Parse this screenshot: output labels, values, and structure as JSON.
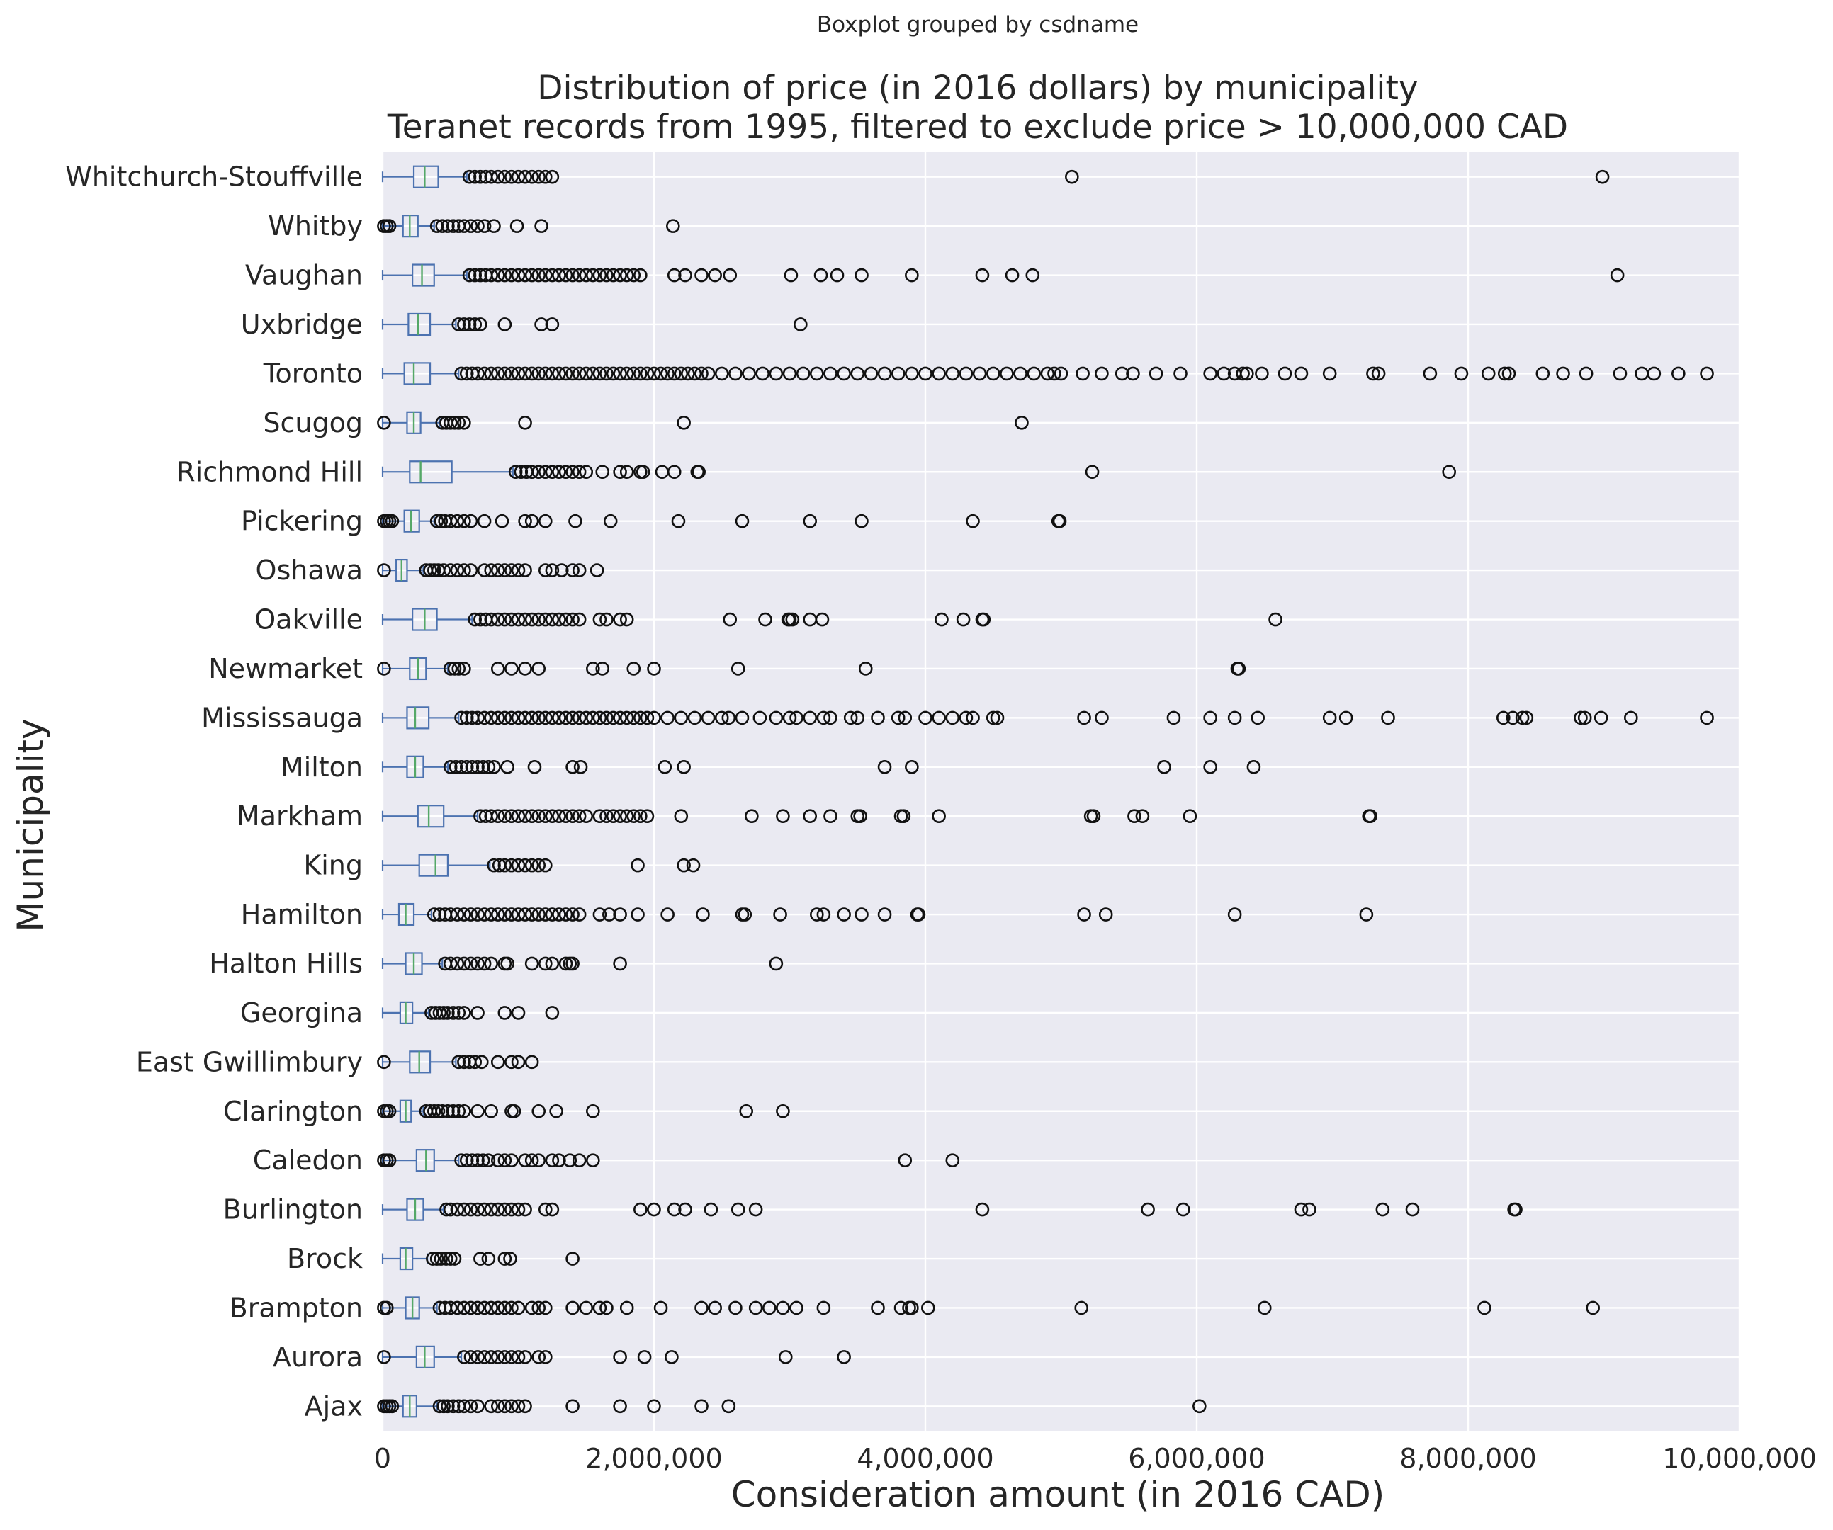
{
  "chart_data": {
    "type": "boxplot",
    "orientation": "horizontal",
    "suptitle": "Boxplot grouped by csdname",
    "title": [
      "Distribution of price (in 2016 dollars) by municipality",
      "Teranet records from 1995, filtered to exclude price > 10,000,000 CAD"
    ],
    "xlabel": "Consideration amount (in 2016 CAD)",
    "ylabel": "Municipality",
    "xlim": [
      0,
      10000000
    ],
    "xticks": [
      0,
      2000000,
      4000000,
      6000000,
      8000000,
      10000000
    ],
    "xtick_labels": [
      "0",
      "2,000,000",
      "4,000,000",
      "6,000,000",
      "8,000,000",
      "10,000,000"
    ],
    "grid": true,
    "colors": {
      "background": "#eaeaf2",
      "box": "#4c72b0",
      "median": "#55a868",
      "flier": "#111111",
      "grid": "#ffffff"
    },
    "groups": [
      {
        "name": "Ajax",
        "whislo": 0,
        "q1": 150000,
        "med": 200000,
        "q3": 250000,
        "whishi": 400000,
        "fliers": [
          10000,
          30000,
          50000,
          70000,
          420000,
          450000,
          480000,
          520000,
          560000,
          600000,
          650000,
          700000,
          800000,
          850000,
          900000,
          950000,
          1000000,
          1050000,
          1400000,
          1750000,
          2000000,
          2350000,
          2550000,
          6020000
        ]
      },
      {
        "name": "Aurora",
        "whislo": 0,
        "q1": 250000,
        "med": 310000,
        "q3": 380000,
        "whishi": 580000,
        "fliers": [
          10000,
          600000,
          650000,
          700000,
          750000,
          800000,
          850000,
          900000,
          950000,
          1000000,
          1050000,
          1150000,
          1200000,
          1750000,
          1930000,
          2130000,
          2970000,
          3400000
        ]
      },
      {
        "name": "Brampton",
        "whislo": 0,
        "q1": 170000,
        "med": 220000,
        "q3": 270000,
        "whishi": 400000,
        "fliers": [
          10000,
          30000,
          420000,
          460000,
          500000,
          550000,
          600000,
          650000,
          700000,
          750000,
          800000,
          850000,
          900000,
          950000,
          1000000,
          1100000,
          1150000,
          1200000,
          1400000,
          1500000,
          1600000,
          1650000,
          1800000,
          2050000,
          2350000,
          2450000,
          2600000,
          2750000,
          2850000,
          2950000,
          3050000,
          3250000,
          3650000,
          3820000,
          3880000,
          3900000,
          4020000,
          5150000,
          6500000,
          8120000,
          8920000
        ]
      },
      {
        "name": "Brock",
        "whislo": 0,
        "q1": 130000,
        "med": 170000,
        "q3": 220000,
        "whishi": 330000,
        "fliers": [
          370000,
          400000,
          430000,
          470000,
          500000,
          530000,
          720000,
          780000,
          900000,
          940000,
          1400000
        ]
      },
      {
        "name": "Burlington",
        "whislo": 0,
        "q1": 180000,
        "med": 240000,
        "q3": 300000,
        "whishi": 450000,
        "fliers": [
          470000,
          500000,
          550000,
          600000,
          650000,
          700000,
          750000,
          800000,
          850000,
          900000,
          950000,
          1000000,
          1050000,
          1200000,
          1250000,
          1900000,
          2000000,
          2150000,
          2230000,
          2420000,
          2620000,
          2750000,
          4420000,
          5640000,
          5900000,
          6770000,
          6830000,
          7370000,
          7590000,
          8340000,
          8350000
        ]
      },
      {
        "name": "Caledon",
        "whislo": 0,
        "q1": 250000,
        "med": 320000,
        "q3": 380000,
        "whishi": 560000,
        "fliers": [
          10000,
          30000,
          50000,
          580000,
          620000,
          660000,
          700000,
          740000,
          780000,
          850000,
          900000,
          950000,
          1050000,
          1100000,
          1150000,
          1250000,
          1300000,
          1380000,
          1450000,
          1550000,
          3850000,
          4200000
        ]
      },
      {
        "name": "Clarington",
        "whislo": 0,
        "q1": 130000,
        "med": 170000,
        "q3": 210000,
        "whishi": 300000,
        "fliers": [
          10000,
          30000,
          50000,
          320000,
          350000,
          380000,
          410000,
          440000,
          480000,
          520000,
          560000,
          600000,
          700000,
          800000,
          950000,
          970000,
          1150000,
          1280000,
          1550000,
          2680000,
          2950000
        ]
      },
      {
        "name": "East Gwillimbury",
        "whislo": 0,
        "q1": 200000,
        "med": 270000,
        "q3": 350000,
        "whishi": 540000,
        "fliers": [
          10000,
          560000,
          600000,
          640000,
          680000,
          730000,
          850000,
          950000,
          1000000,
          1100000
        ]
      },
      {
        "name": "Georgina",
        "whislo": 0,
        "q1": 130000,
        "med": 170000,
        "q3": 220000,
        "whishi": 340000,
        "fliers": [
          360000,
          390000,
          420000,
          450000,
          480000,
          520000,
          560000,
          600000,
          700000,
          900000,
          1000000,
          1250000
        ]
      },
      {
        "name": "Halton Hills",
        "whislo": 0,
        "q1": 170000,
        "med": 230000,
        "q3": 290000,
        "whishi": 440000,
        "fliers": [
          460000,
          500000,
          550000,
          600000,
          650000,
          700000,
          750000,
          800000,
          900000,
          920000,
          1100000,
          1200000,
          1250000,
          1350000,
          1380000,
          1400000,
          1750000,
          2900000
        ]
      },
      {
        "name": "Hamilton",
        "whislo": 0,
        "q1": 120000,
        "med": 170000,
        "q3": 230000,
        "whishi": 360000,
        "fliers": [
          380000,
          420000,
          460000,
          500000,
          550000,
          600000,
          650000,
          700000,
          750000,
          800000,
          850000,
          900000,
          950000,
          1000000,
          1050000,
          1100000,
          1150000,
          1200000,
          1250000,
          1300000,
          1350000,
          1400000,
          1450000,
          1600000,
          1670000,
          1750000,
          1880000,
          2100000,
          2360000,
          2650000,
          2670000,
          2930000,
          3200000,
          3250000,
          3400000,
          3530000,
          3700000,
          3940000,
          3950000,
          5170000,
          5330000,
          6280000,
          7250000
        ]
      },
      {
        "name": "King",
        "whislo": 0,
        "q1": 270000,
        "med": 390000,
        "q3": 480000,
        "whishi": 790000,
        "fliers": [
          820000,
          860000,
          900000,
          950000,
          1000000,
          1050000,
          1100000,
          1150000,
          1200000,
          1880000,
          2220000,
          2290000
        ]
      },
      {
        "name": "Markham",
        "whislo": 0,
        "q1": 260000,
        "med": 340000,
        "q3": 450000,
        "whishi": 700000,
        "fliers": [
          720000,
          760000,
          800000,
          850000,
          900000,
          950000,
          1000000,
          1050000,
          1100000,
          1150000,
          1200000,
          1250000,
          1300000,
          1350000,
          1400000,
          1450000,
          1500000,
          1600000,
          1650000,
          1700000,
          1750000,
          1800000,
          1850000,
          1900000,
          1950000,
          2200000,
          2720000,
          2950000,
          3150000,
          3300000,
          3500000,
          3520000,
          3820000,
          3840000,
          4100000,
          5220000,
          5240000,
          5540000,
          5600000,
          5950000,
          7270000,
          7280000
        ]
      },
      {
        "name": "Milton",
        "whislo": 0,
        "q1": 180000,
        "med": 240000,
        "q3": 300000,
        "whishi": 480000,
        "fliers": [
          500000,
          540000,
          580000,
          620000,
          660000,
          700000,
          740000,
          780000,
          820000,
          920000,
          1120000,
          1400000,
          1460000,
          2080000,
          2220000,
          3700000,
          3900000,
          5760000,
          6100000,
          6420000
        ]
      },
      {
        "name": "Mississauga",
        "whislo": 0,
        "q1": 180000,
        "med": 240000,
        "q3": 340000,
        "whishi": 560000,
        "fliers": [
          580000,
          620000,
          660000,
          700000,
          750000,
          800000,
          850000,
          900000,
          950000,
          1000000,
          1050000,
          1100000,
          1150000,
          1200000,
          1250000,
          1300000,
          1350000,
          1400000,
          1450000,
          1500000,
          1550000,
          1600000,
          1650000,
          1700000,
          1750000,
          1800000,
          1850000,
          1900000,
          1950000,
          2000000,
          2100000,
          2200000,
          2300000,
          2400000,
          2500000,
          2550000,
          2650000,
          2780000,
          2900000,
          3000000,
          3050000,
          3150000,
          3250000,
          3300000,
          3450000,
          3500000,
          3650000,
          3800000,
          3850000,
          4000000,
          4100000,
          4200000,
          4300000,
          4350000,
          4500000,
          4530000,
          5170000,
          5300000,
          5830000,
          6100000,
          6280000,
          6450000,
          6980000,
          7100000,
          7410000,
          8260000,
          8330000,
          8400000,
          8430000,
          8830000,
          8860000,
          8980000,
          9200000,
          9760000
        ]
      },
      {
        "name": "Newmarket",
        "whislo": 0,
        "q1": 200000,
        "med": 260000,
        "q3": 320000,
        "whishi": 480000,
        "fliers": [
          10000,
          500000,
          530000,
          560000,
          600000,
          850000,
          950000,
          1050000,
          1150000,
          1550000,
          1620000,
          1850000,
          2000000,
          2620000,
          3560000,
          6300000,
          6310000
        ]
      },
      {
        "name": "Oakville",
        "whislo": 0,
        "q1": 220000,
        "med": 310000,
        "q3": 400000,
        "whishi": 660000,
        "fliers": [
          680000,
          720000,
          760000,
          800000,
          850000,
          900000,
          950000,
          1000000,
          1050000,
          1100000,
          1150000,
          1200000,
          1250000,
          1300000,
          1350000,
          1400000,
          1450000,
          1600000,
          1650000,
          1750000,
          1800000,
          2560000,
          2820000,
          2990000,
          3000000,
          3020000,
          3150000,
          3240000,
          4120000,
          4280000,
          4420000,
          4430000,
          6580000
        ]
      },
      {
        "name": "Oshawa",
        "whislo": 0,
        "q1": 100000,
        "med": 140000,
        "q3": 180000,
        "whishi": 300000,
        "fliers": [
          10000,
          320000,
          350000,
          380000,
          410000,
          450000,
          500000,
          550000,
          600000,
          650000,
          750000,
          800000,
          850000,
          900000,
          950000,
          1000000,
          1050000,
          1200000,
          1250000,
          1320000,
          1400000,
          1450000,
          1580000
        ]
      },
      {
        "name": "Pickering",
        "whislo": 0,
        "q1": 160000,
        "med": 210000,
        "q3": 270000,
        "whishi": 380000,
        "fliers": [
          10000,
          30000,
          50000,
          70000,
          400000,
          430000,
          460000,
          500000,
          550000,
          600000,
          650000,
          750000,
          880000,
          1050000,
          1100000,
          1200000,
          1420000,
          1680000,
          2180000,
          2650000,
          3150000,
          3530000,
          4350000,
          4980000,
          4990000
        ]
      },
      {
        "name": "Richmond Hill",
        "whislo": 0,
        "q1": 200000,
        "med": 280000,
        "q3": 510000,
        "whishi": 960000,
        "fliers": [
          980000,
          1020000,
          1060000,
          1100000,
          1150000,
          1200000,
          1250000,
          1300000,
          1350000,
          1400000,
          1450000,
          1500000,
          1620000,
          1750000,
          1800000,
          1900000,
          1920000,
          2060000,
          2150000,
          2320000,
          2330000,
          5230000,
          7860000
        ]
      },
      {
        "name": "Scugog",
        "whislo": 0,
        "q1": 180000,
        "med": 230000,
        "q3": 280000,
        "whishi": 420000,
        "fliers": [
          10000,
          440000,
          470000,
          500000,
          530000,
          560000,
          600000,
          1050000,
          2220000,
          4710000
        ]
      },
      {
        "name": "Toronto",
        "whislo": 0,
        "q1": 160000,
        "med": 230000,
        "q3": 350000,
        "whishi": 560000,
        "fliers": [
          580000,
          620000,
          660000,
          700000,
          750000,
          800000,
          850000,
          900000,
          950000,
          1000000,
          1050000,
          1100000,
          1150000,
          1200000,
          1250000,
          1300000,
          1350000,
          1400000,
          1450000,
          1500000,
          1550000,
          1600000,
          1650000,
          1700000,
          1750000,
          1800000,
          1850000,
          1900000,
          1950000,
          2000000,
          2050000,
          2100000,
          2150000,
          2200000,
          2250000,
          2300000,
          2350000,
          2400000,
          2500000,
          2600000,
          2700000,
          2800000,
          2900000,
          3000000,
          3100000,
          3200000,
          3300000,
          3400000,
          3500000,
          3600000,
          3700000,
          3800000,
          3900000,
          4000000,
          4100000,
          4200000,
          4300000,
          4400000,
          4500000,
          4600000,
          4700000,
          4800000,
          4900000,
          4950000,
          5000000,
          5160000,
          5300000,
          5450000,
          5530000,
          5700000,
          5880000,
          6100000,
          6200000,
          6280000,
          6340000,
          6370000,
          6480000,
          6650000,
          6770000,
          6980000,
          7300000,
          7340000,
          7720000,
          7950000,
          8150000,
          8270000,
          8300000,
          8550000,
          8700000,
          8870000,
          9120000,
          9280000,
          9370000,
          9550000,
          9760000
        ]
      },
      {
        "name": "Uxbridge",
        "whislo": 0,
        "q1": 190000,
        "med": 260000,
        "q3": 350000,
        "whishi": 540000,
        "fliers": [
          560000,
          600000,
          640000,
          680000,
          720000,
          900000,
          1170000,
          1250000,
          3080000
        ]
      },
      {
        "name": "Vaughan",
        "whislo": 0,
        "q1": 220000,
        "med": 290000,
        "q3": 380000,
        "whishi": 620000,
        "fliers": [
          640000,
          680000,
          720000,
          760000,
          800000,
          850000,
          900000,
          950000,
          1000000,
          1050000,
          1100000,
          1150000,
          1200000,
          1250000,
          1300000,
          1350000,
          1400000,
          1450000,
          1500000,
          1550000,
          1600000,
          1650000,
          1700000,
          1750000,
          1800000,
          1850000,
          1900000,
          2150000,
          2230000,
          2350000,
          2450000,
          2560000,
          3010000,
          3230000,
          3350000,
          3530000,
          3900000,
          4420000,
          4640000,
          4790000,
          9100000
        ]
      },
      {
        "name": "Whitby",
        "whislo": 0,
        "q1": 150000,
        "med": 200000,
        "q3": 260000,
        "whishi": 380000,
        "fliers": [
          10000,
          30000,
          50000,
          400000,
          440000,
          480000,
          520000,
          560000,
          600000,
          650000,
          700000,
          750000,
          820000,
          990000,
          1170000,
          2140000
        ]
      },
      {
        "name": "Whitchurch-Stouffville",
        "whislo": 0,
        "q1": 230000,
        "med": 310000,
        "q3": 410000,
        "whishi": 620000,
        "fliers": [
          640000,
          680000,
          720000,
          760000,
          800000,
          850000,
          900000,
          950000,
          1000000,
          1050000,
          1100000,
          1150000,
          1200000,
          1250000,
          5080000,
          8990000
        ]
      }
    ]
  }
}
